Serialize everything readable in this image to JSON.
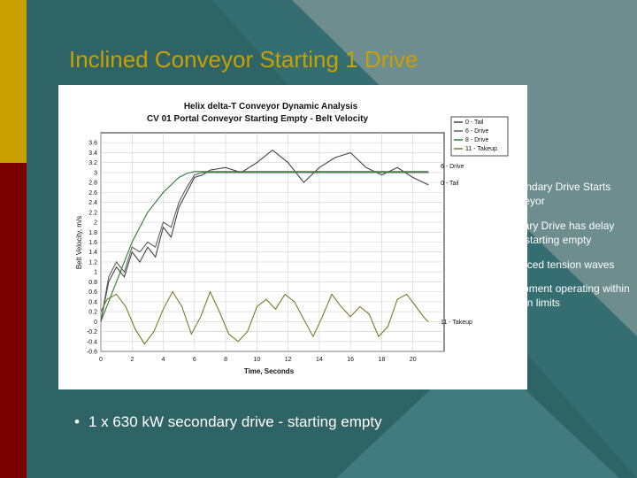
{
  "slide": {
    "title": "Inclined Conveyor Starting 1 Drive",
    "bullets": [
      "Secondary Drive Starts conveyor",
      "Primary Drive has delay time starting empty",
      "Reduced tension waves",
      "Equipment operating within design limits"
    ],
    "bottom_bullet": "1 x 630 kW secondary drive - starting empty",
    "bullet_glyph": "•",
    "colors": {
      "background": "#2f6466",
      "accent_gold": "#c9a000",
      "accent_red": "#7a0000"
    }
  },
  "chart_data": {
    "type": "line",
    "title": "Helix delta-T Conveyor Dynamic Analysis",
    "subtitle": "CV 01 Portal Conveyor Starting Empty - Belt Velocity",
    "xlabel": "Time, Seconds",
    "ylabel": "Belt Velocity, m/s",
    "xlim": [
      0,
      22
    ],
    "ylim": [
      -0.6,
      3.8
    ],
    "x_ticks": [
      "0",
      "2",
      "4",
      "6",
      "8",
      "10",
      "12",
      "14",
      "16",
      "18",
      "20"
    ],
    "y_ticks": [
      "3.6",
      "3.4",
      "3.2",
      "3",
      "2.8",
      "2.6",
      "2.4",
      "2.2",
      "2",
      "1.8",
      "1.6",
      "1.4",
      "1.2",
      "1",
      "0.8",
      "0.6",
      "0.4",
      "0.2",
      "0",
      "-0.2",
      "-0.4",
      "-0.6"
    ],
    "grid": true,
    "legend_position": "top-right",
    "end_labels": [
      "6 - Drive",
      "0 - Tail",
      "11 - Takeup"
    ],
    "series": [
      {
        "name": "0 - Tail",
        "color": "#444444",
        "x": [
          0,
          0.5,
          1,
          1.5,
          2,
          2.5,
          3,
          3.5,
          4,
          4.5,
          5,
          5.5,
          6,
          6.5,
          7,
          8,
          9,
          10,
          11,
          12,
          13,
          14,
          15,
          16,
          17,
          18,
          19,
          20,
          21
        ],
        "y": [
          0,
          0.8,
          1.1,
          0.9,
          1.4,
          1.2,
          1.5,
          1.3,
          1.9,
          1.7,
          2.3,
          2.6,
          2.9,
          2.95,
          3.05,
          3.1,
          3.0,
          3.2,
          3.45,
          3.2,
          2.8,
          3.1,
          3.3,
          3.4,
          3.1,
          2.95,
          3.1,
          2.9,
          2.75
        ]
      },
      {
        "name": "6 - Drive",
        "color": "#606060",
        "x": [
          0,
          0.5,
          1,
          1.5,
          2,
          2.5,
          3,
          3.5,
          4,
          4.5,
          5,
          5.5,
          6,
          6.5,
          7,
          8,
          9,
          10,
          11,
          12,
          13,
          14,
          15,
          16,
          17,
          18,
          19,
          20,
          21
        ],
        "y": [
          0,
          0.9,
          1.2,
          1.0,
          1.5,
          1.4,
          1.6,
          1.5,
          2.0,
          1.9,
          2.4,
          2.7,
          2.95,
          3.0,
          3.0,
          3.0,
          3.0,
          3.0,
          3.0,
          3.0,
          3.0,
          3.0,
          3.0,
          3.0,
          3.0,
          3.0,
          3.0,
          3.0,
          3.0
        ]
      },
      {
        "name": "8 - Drive",
        "color": "#2e7d32",
        "x": [
          0,
          1,
          2,
          3,
          4,
          5,
          5.5,
          6,
          7,
          8,
          10,
          12,
          14,
          16,
          18,
          20,
          21
        ],
        "y": [
          0,
          0.8,
          1.6,
          2.2,
          2.6,
          2.9,
          2.98,
          3.02,
          3.02,
          3.02,
          3.02,
          3.02,
          3.02,
          3.02,
          3.02,
          3.02,
          3.02
        ]
      },
      {
        "name": "11 - Takeup",
        "color": "#7a7a2a",
        "x": [
          0,
          0.4,
          1,
          1.6,
          2.2,
          2.8,
          3.4,
          4,
          4.6,
          5.2,
          5.8,
          6.4,
          7,
          7.6,
          8.2,
          8.8,
          9.4,
          10,
          10.6,
          11.2,
          11.8,
          12.4,
          13,
          13.6,
          14.2,
          14.8,
          15.4,
          16,
          16.6,
          17.2,
          17.8,
          18.4,
          19,
          19.6,
          20.2,
          20.8,
          21
        ],
        "y": [
          0.2,
          0.45,
          0.55,
          0.3,
          -0.15,
          -0.45,
          -0.2,
          0.25,
          0.6,
          0.3,
          -0.25,
          0.1,
          0.6,
          0.2,
          -0.25,
          -0.4,
          -0.2,
          0.3,
          0.45,
          0.25,
          0.55,
          0.4,
          0.05,
          -0.3,
          0.1,
          0.55,
          0.3,
          0.1,
          0.3,
          0.15,
          -0.3,
          -0.1,
          0.45,
          0.55,
          0.3,
          0.05,
          0.0
        ]
      }
    ]
  }
}
